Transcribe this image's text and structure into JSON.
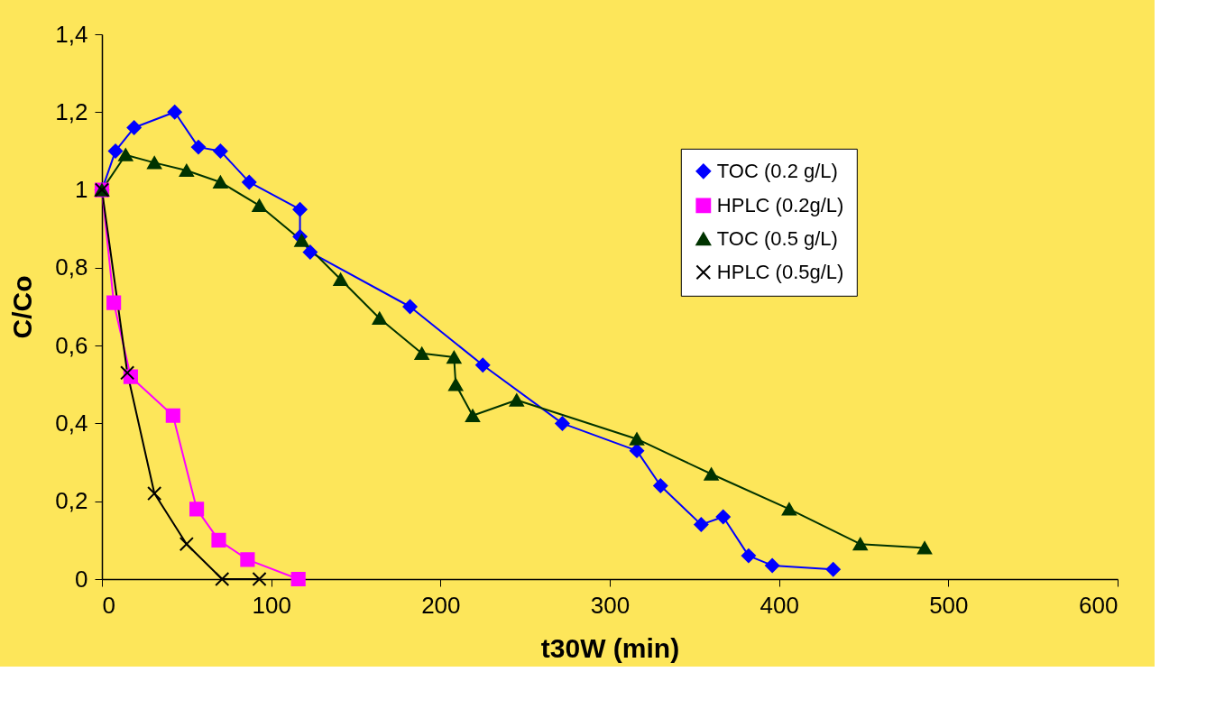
{
  "chart_data": {
    "type": "line",
    "xlabel": "t30W (min)",
    "ylabel": "C/Co",
    "xlim": [
      0,
      600
    ],
    "xticks": [
      0,
      100,
      200,
      300,
      400,
      500,
      600
    ],
    "ylim": [
      0,
      1.4
    ],
    "yticks": [
      0,
      {
        "value": 0.2,
        "label": "0,2"
      },
      {
        "value": 0.4,
        "label": "0,4"
      },
      {
        "value": 0.6,
        "label": "0,6"
      },
      {
        "value": 0.8,
        "label": "0,8"
      },
      1,
      {
        "value": 1.2,
        "label": "1,2"
      },
      {
        "value": 1.4,
        "label": "1,4"
      }
    ],
    "grid": false,
    "legend": "top right",
    "line_style": "solid",
    "series": [
      {
        "name": "TOC (0.2 g/L)",
        "color": "#0000ff",
        "marker": "diamond",
        "x": [
          0,
          8,
          19,
          43,
          57,
          70,
          87,
          117,
          117,
          123,
          182,
          225,
          272,
          316,
          330,
          354,
          367,
          382,
          396,
          432
        ],
        "values": [
          1.0,
          1.1,
          1.16,
          1.2,
          1.11,
          1.1,
          1.02,
          0.95,
          0.88,
          0.84,
          0.7,
          0.55,
          0.4,
          0.33,
          0.24,
          0.14,
          0.16,
          0.06,
          0.035,
          0.025
        ]
      },
      {
        "name": "HPLC (0.2g/L)",
        "color": "#ff00ff",
        "marker": "square",
        "x": [
          0,
          7,
          17,
          42,
          56,
          69,
          86,
          116
        ],
        "values": [
          1.0,
          0.71,
          0.52,
          0.42,
          0.18,
          0.1,
          0.05,
          0.0
        ]
      },
      {
        "name": "TOC (0.5 g/L)",
        "color": "#003300",
        "marker": "triangle",
        "x": [
          0,
          14,
          31,
          50,
          70,
          93,
          118,
          141,
          164,
          189,
          208,
          209,
          219,
          245,
          316,
          360,
          406,
          448,
          486
        ],
        "values": [
          1.0,
          1.09,
          1.07,
          1.05,
          1.02,
          0.96,
          0.87,
          0.77,
          0.67,
          0.58,
          0.57,
          0.5,
          0.42,
          0.46,
          0.36,
          0.27,
          0.18,
          0.09,
          0.08
        ]
      },
      {
        "name": "HPLC (0.5g/L)",
        "color": "#000000",
        "marker": "cross",
        "x": [
          0,
          15,
          31,
          50,
          71,
          93
        ],
        "values": [
          1.0,
          0.53,
          0.22,
          0.09,
          0.0,
          0.0
        ]
      }
    ]
  }
}
